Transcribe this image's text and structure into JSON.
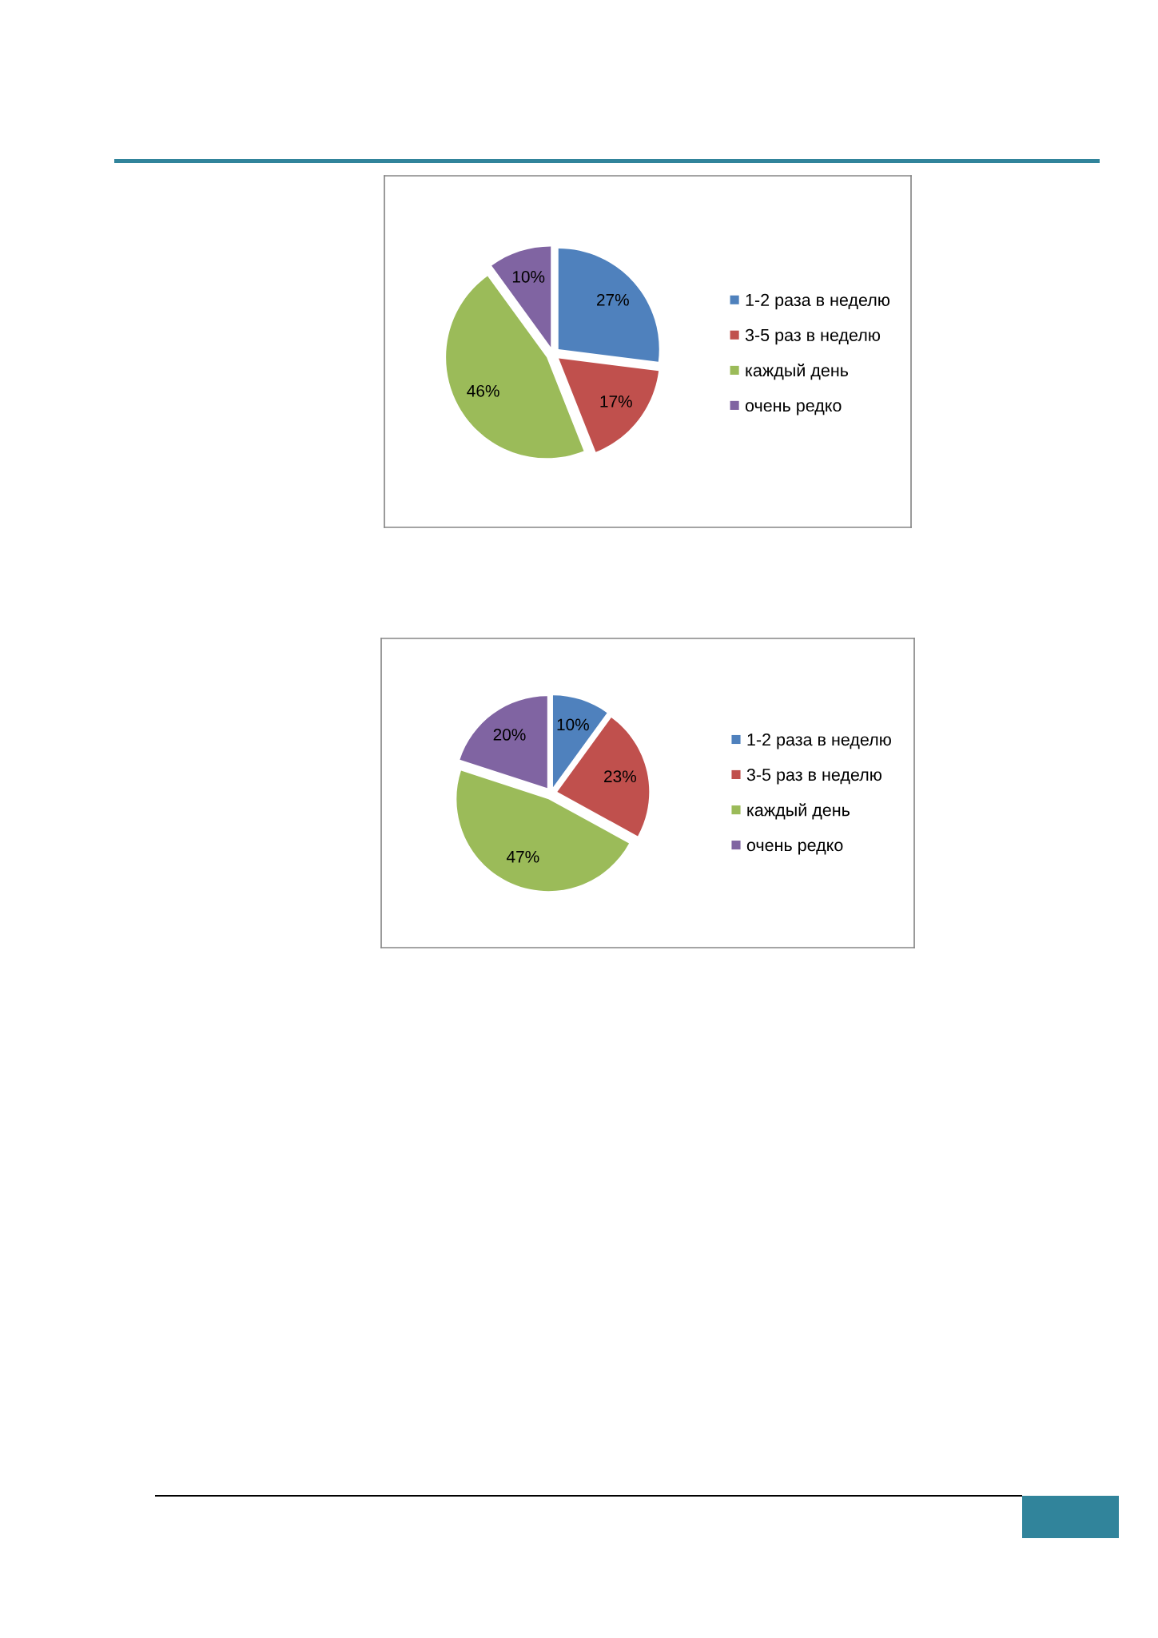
{
  "chart_data": [
    {
      "type": "pie",
      "categories": [
        "1-2 раза в неделю",
        "3-5 раз в неделю",
        "каждый день",
        "очень редко"
      ],
      "values": [
        27,
        17,
        46,
        10
      ],
      "colors": [
        "#4f81bd",
        "#c0504d",
        "#9bbb59",
        "#8064a2"
      ],
      "value_labels": [
        "27%",
        "17%",
        "46%",
        "10%"
      ],
      "legend": "right"
    },
    {
      "type": "pie",
      "categories": [
        "1-2 раза в неделю",
        "3-5 раз в неделю",
        "каждый день",
        "очень редко"
      ],
      "values": [
        10,
        23,
        47,
        20
      ],
      "colors": [
        "#4f81bd",
        "#c0504d",
        "#9bbb59",
        "#8064a2"
      ],
      "value_labels": [
        "10%",
        "23%",
        "47%",
        "20%"
      ],
      "legend": "right"
    }
  ]
}
